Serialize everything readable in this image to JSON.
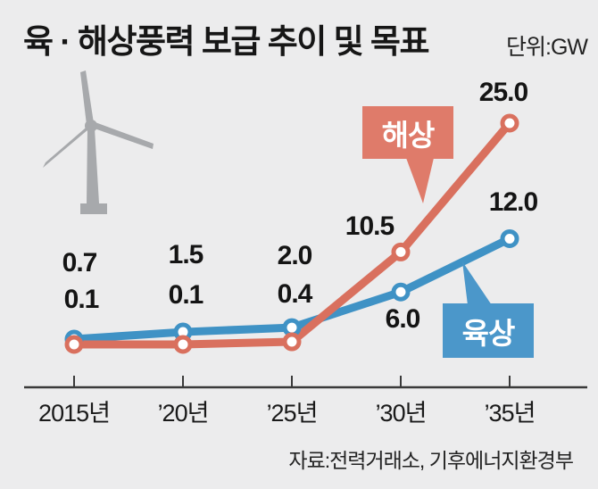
{
  "title": "육 · 해상풍력 보급 추이 및 목표",
  "unit_label": "단위:GW",
  "source": "자료:전력거래소, 기후에너지환경부",
  "colors": {
    "background": "#ececed",
    "offshore_line": "#d9705e",
    "offshore_box": "#df7b6a",
    "onshore_line": "#3f92c5",
    "onshore_box": "#4b97ca",
    "marker_fill": "#ffffff",
    "axis": "#3a3a3a",
    "text": "#141414",
    "turbine": "#a7a9ac"
  },
  "chart_data": {
    "type": "line",
    "title": "육 · 해상풍력 보급 추이 및 목표",
    "unit": "GW",
    "categories": [
      "2015년",
      "’20년",
      "’25년",
      "’30년",
      "’35년"
    ],
    "series": [
      {
        "key": "offshore",
        "name": "해상",
        "values": [
          0.1,
          0.1,
          0.4,
          10.5,
          25.0
        ],
        "color": "#d9705e",
        "box_color": "#df7b6a"
      },
      {
        "key": "onshore",
        "name": "육상",
        "values": [
          0.7,
          1.5,
          2.0,
          6.0,
          12.0
        ],
        "color": "#3f92c5",
        "box_color": "#4b97ca"
      }
    ],
    "ylim": [
      0,
      26
    ],
    "grid": false,
    "value_labels": true,
    "legend": "callout-boxes pointing at lines",
    "source": "자료:전력거래소, 기후에너지환경부"
  }
}
